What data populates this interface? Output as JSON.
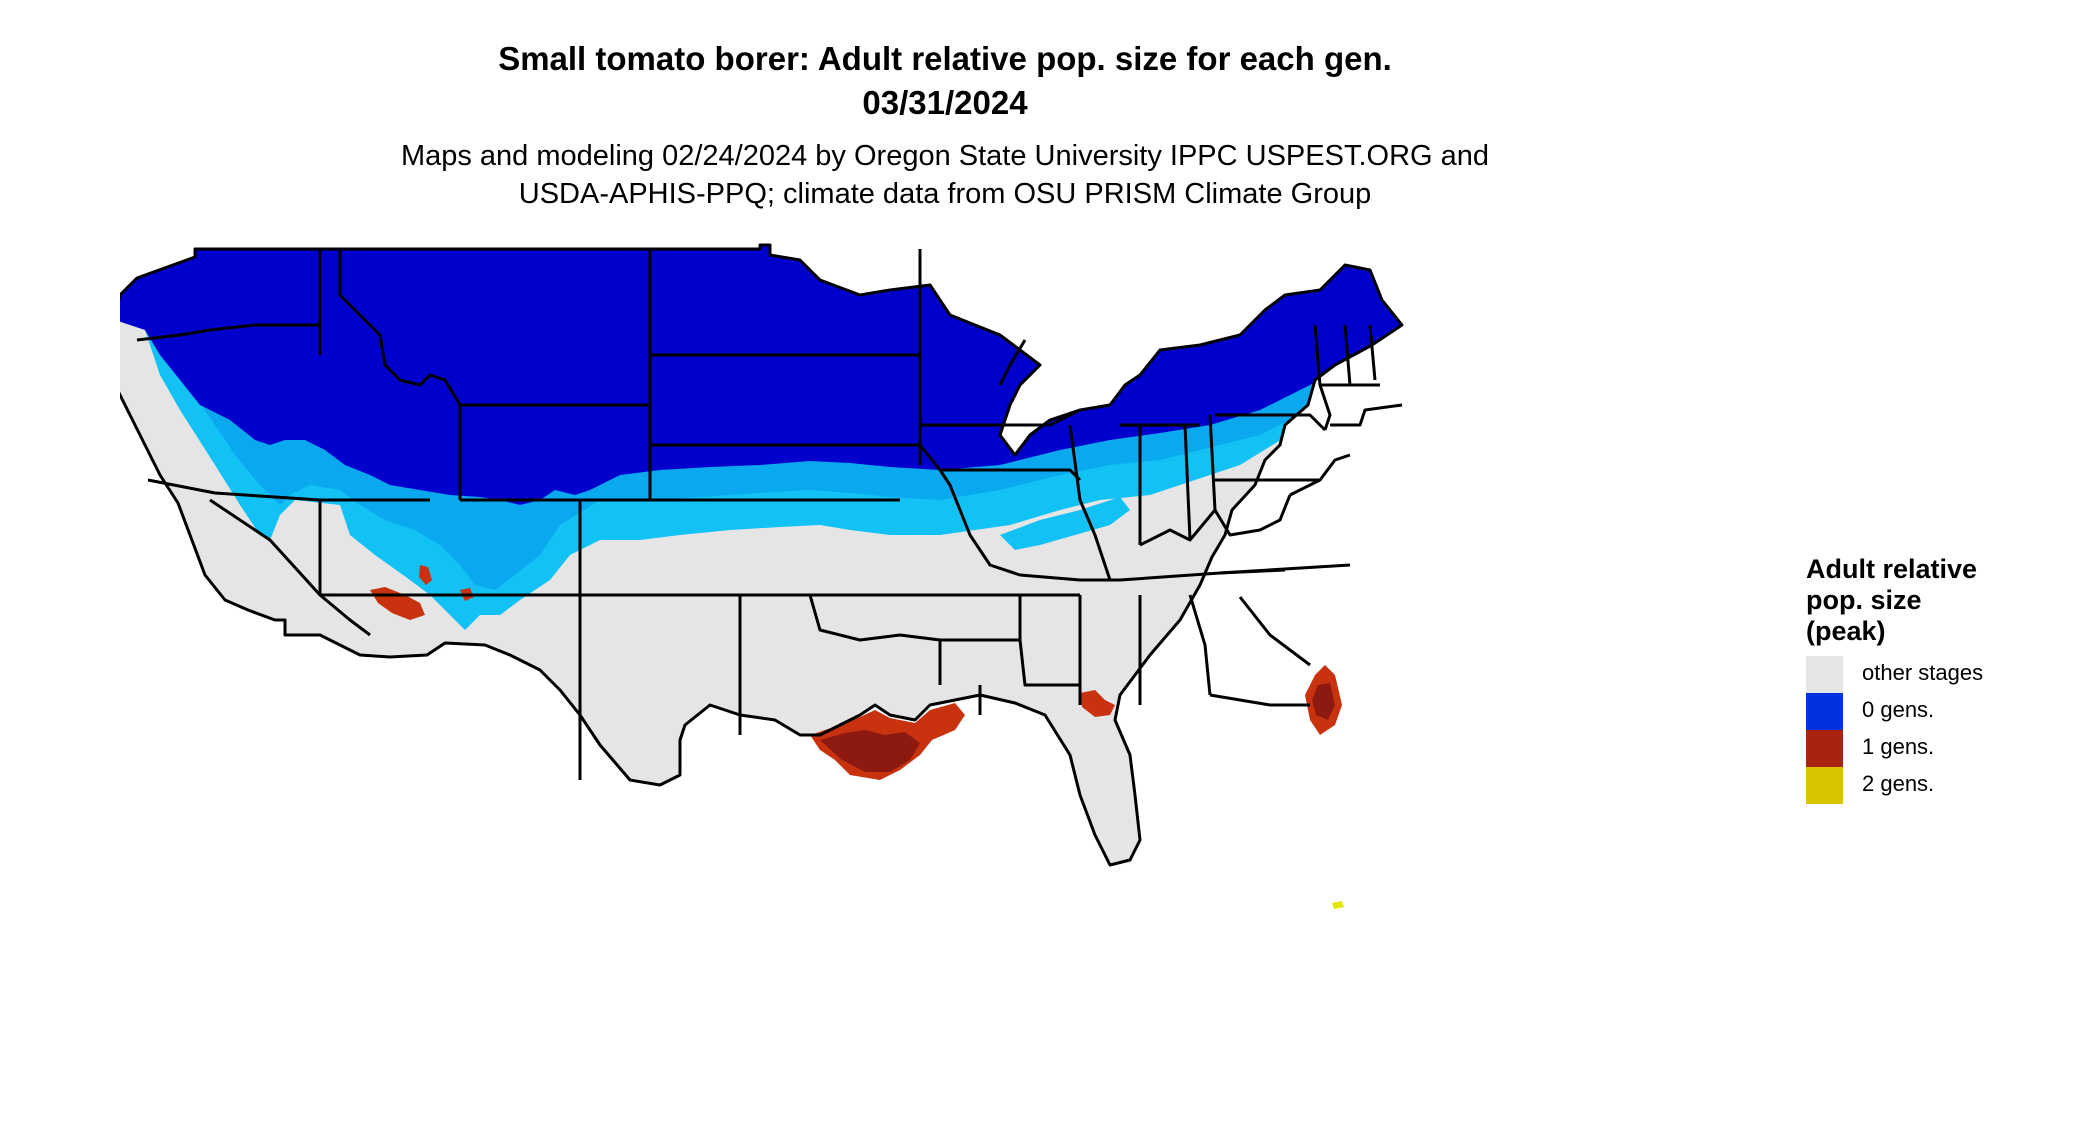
{
  "title": {
    "line1": "Small tomato borer: Adult relative pop. size for each gen.",
    "line2": "03/31/2024"
  },
  "subtitle": {
    "line1": "Maps and modeling 02/24/2024 by Oregon State University IPPC USPEST.ORG and",
    "line2": "USDA-APHIS-PPQ; climate data from OSU PRISM Climate Group"
  },
  "legend": {
    "title_line1": "Adult relative",
    "title_line2": "pop. size",
    "title_line3": "(peak)",
    "items": [
      {
        "label": "other stages",
        "color": "#e6e6e6"
      },
      {
        "label": "0 gens.",
        "color": "#0033dd"
      },
      {
        "label": "1 gens.",
        "color": "#aa2211"
      },
      {
        "label": "2 gens.",
        "color": "#d9c400"
      }
    ]
  },
  "map_colors": {
    "other_stages": "#e5e5e5",
    "zero_gens_dark": "#0000cc",
    "zero_gens_mid": "#0a4be0",
    "zero_gens_light": "#0aa8ee",
    "zero_gens_cyan": "#12c2f5",
    "one_gens": "#c8320f",
    "one_gens_dark": "#8c1a10",
    "two_gens": "#e6e600",
    "borders": "#000000"
  }
}
